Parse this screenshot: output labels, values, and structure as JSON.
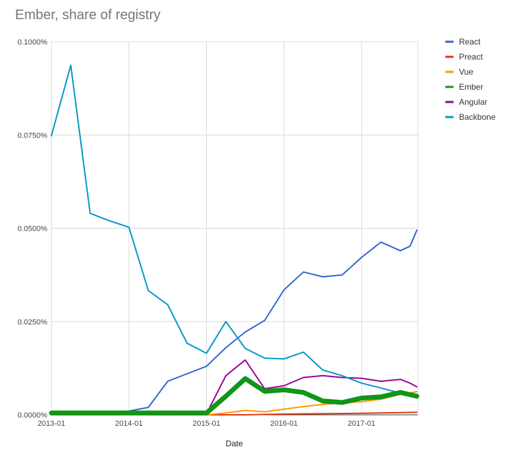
{
  "chart_data": {
    "type": "line",
    "title": "Ember, share of registry",
    "xlabel": "Date",
    "ylabel": "",
    "x": [
      "2013-01",
      "2013-04",
      "2013-07",
      "2013-10",
      "2014-01",
      "2014-04",
      "2014-07",
      "2014-10",
      "2015-01",
      "2015-04",
      "2015-07",
      "2015-10",
      "2016-01",
      "2016-04",
      "2016-07",
      "2016-10",
      "2017-01",
      "2017-04",
      "2017-07",
      "2017-10"
    ],
    "x_tick_labels": [
      "2013-01",
      "2014-01",
      "2015-01",
      "2016-01",
      "2017-01"
    ],
    "y_tick_labels": [
      "0.0000%",
      "0.0250%",
      "0.0500%",
      "0.0750%",
      "0.1000%"
    ],
    "ylim": [
      0,
      0.001
    ],
    "grid": true,
    "legend_position": "right",
    "series": [
      {
        "name": "React",
        "color": "#3366cc",
        "points": [
          [
            0,
            5e-06
          ],
          [
            1,
            5e-06
          ],
          [
            2,
            5e-06
          ],
          [
            3,
            5e-06
          ],
          [
            4,
            1e-05
          ],
          [
            5,
            2e-05
          ],
          [
            6,
            9e-05
          ],
          [
            7,
            0.00011
          ],
          [
            8,
            0.00013
          ],
          [
            9,
            0.00018
          ],
          [
            10,
            0.000222
          ],
          [
            11,
            0.000253
          ],
          [
            12,
            0.000335
          ],
          [
            13,
            0.000383
          ],
          [
            14,
            0.00037
          ],
          [
            15,
            0.000375
          ],
          [
            16,
            0.000422
          ],
          [
            17,
            0.000463
          ],
          [
            18,
            0.00044
          ],
          [
            18.5,
            0.000452
          ],
          [
            18.85,
            0.000495
          ]
        ]
      },
      {
        "name": "Preact",
        "color": "#dc3912",
        "points": [
          [
            0,
            0
          ],
          [
            2,
            0
          ],
          [
            4,
            0
          ],
          [
            6,
            0
          ],
          [
            8,
            0
          ],
          [
            10,
            0
          ],
          [
            12,
            2e-06
          ],
          [
            14,
            3e-06
          ],
          [
            16,
            4e-06
          ],
          [
            17,
            5e-06
          ],
          [
            18,
            6e-06
          ],
          [
            18.85,
            7e-06
          ]
        ]
      },
      {
        "name": "Vue",
        "color": "#ff9900",
        "points": [
          [
            0,
            0
          ],
          [
            2,
            0
          ],
          [
            4,
            0
          ],
          [
            5,
            0
          ],
          [
            6,
            1e-05
          ],
          [
            7,
            5e-06
          ],
          [
            8,
            0
          ],
          [
            9,
            5e-06
          ],
          [
            10,
            1.2e-05
          ],
          [
            11,
            8e-06
          ],
          [
            12,
            1.5e-05
          ],
          [
            13,
            2.2e-05
          ],
          [
            14,
            2.8e-05
          ],
          [
            15,
            3.2e-05
          ],
          [
            16,
            3.5e-05
          ],
          [
            17,
            4.2e-05
          ],
          [
            18,
            5.5e-05
          ],
          [
            18.85,
            6.2e-05
          ]
        ]
      },
      {
        "name": "Ember",
        "color": "#109618",
        "points": [
          [
            0,
            5e-06
          ],
          [
            1,
            5e-06
          ],
          [
            2,
            5e-06
          ],
          [
            3,
            5e-06
          ],
          [
            4,
            5e-06
          ],
          [
            5,
            5e-06
          ],
          [
            6,
            5e-06
          ],
          [
            7,
            5e-06
          ],
          [
            8,
            5e-06
          ],
          [
            9,
            5e-05
          ],
          [
            10,
            9.7e-05
          ],
          [
            11,
            6.3e-05
          ],
          [
            12,
            6.7e-05
          ],
          [
            13,
            6e-05
          ],
          [
            14,
            3.7e-05
          ],
          [
            15,
            3.3e-05
          ],
          [
            16,
            4.5e-05
          ],
          [
            17,
            4.8e-05
          ],
          [
            18,
            6e-05
          ],
          [
            18.85,
            5e-05
          ]
        ]
      },
      {
        "name": "Angular",
        "color": "#990099",
        "points": [
          [
            0,
            3e-06
          ],
          [
            2,
            3e-06
          ],
          [
            4,
            3e-06
          ],
          [
            6,
            3e-06
          ],
          [
            7,
            3e-06
          ],
          [
            8,
            3e-06
          ],
          [
            9,
            0.000105
          ],
          [
            10,
            0.000147
          ],
          [
            11,
            7e-05
          ],
          [
            12,
            7.8e-05
          ],
          [
            13,
            0.0001
          ],
          [
            14,
            0.000105
          ],
          [
            15,
            0.0001
          ],
          [
            16,
            9.8e-05
          ],
          [
            17,
            9e-05
          ],
          [
            18,
            9.5e-05
          ],
          [
            18.5,
            8.5e-05
          ],
          [
            18.85,
            7.5e-05
          ]
        ]
      },
      {
        "name": "Backbone",
        "color": "#0099c6",
        "points": [
          [
            0,
            0.000748
          ],
          [
            1,
            0.000937
          ],
          [
            2,
            0.00054
          ],
          [
            3,
            0.00052
          ],
          [
            4,
            0.000503
          ],
          [
            5,
            0.000333
          ],
          [
            6,
            0.000295
          ],
          [
            7,
            0.000192
          ],
          [
            8,
            0.000165
          ],
          [
            9,
            0.00025
          ],
          [
            10,
            0.000178
          ],
          [
            11,
            0.000152
          ],
          [
            12,
            0.00015
          ],
          [
            13,
            0.000168
          ],
          [
            14,
            0.00012
          ],
          [
            15,
            0.000105
          ],
          [
            16,
            8.5e-05
          ],
          [
            17,
            7.2e-05
          ],
          [
            18,
            5.8e-05
          ],
          [
            18.85,
            4.8e-05
          ]
        ]
      }
    ]
  }
}
